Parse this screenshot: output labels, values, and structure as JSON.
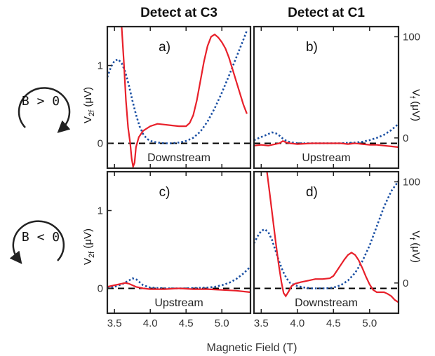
{
  "chart_data": {
    "type": "line",
    "column_titles": [
      "Detect at C3",
      "Detect at C1"
    ],
    "xlabel": "Magnetic Field  (T)",
    "xlim": [
      3.4,
      5.4
    ],
    "xticks": [
      "3.5",
      "4.0",
      "4.5",
      "5.0"
    ],
    "left_ylabel": {
      "main": "V",
      "sub": "2f",
      "unit": " (μV)"
    },
    "right_ylabel": {
      "main": "V",
      "sub": "f",
      "unit": " (μV)"
    },
    "left_ylim": [
      -0.32,
      1.5
    ],
    "left_yticks": [
      "0",
      "1"
    ],
    "right_ylim": [
      -29.9,
      110
    ],
    "right_yticks": [
      "0",
      "100"
    ],
    "row_labels": [
      {
        "text": "B > 0",
        "rotation": "clockwise"
      },
      {
        "text": "B < 0",
        "rotation": "counterclockwise"
      }
    ],
    "colors": {
      "red": "#e8202a",
      "blue": "#1a4fa3",
      "dash": "#000000"
    },
    "panels": [
      {
        "label": "a)",
        "annotation": "Downstream",
        "red": [
          [
            3.6,
            1.5
          ],
          [
            3.63,
            1.05
          ],
          [
            3.66,
            0.55
          ],
          [
            3.69,
            0.2
          ],
          [
            3.72,
            0.0
          ],
          [
            3.74,
            -0.2
          ],
          [
            3.76,
            -0.3
          ],
          [
            3.78,
            -0.25
          ],
          [
            3.8,
            -0.05
          ],
          [
            3.84,
            0.08
          ],
          [
            3.9,
            0.16
          ],
          [
            4.0,
            0.22
          ],
          [
            4.1,
            0.25
          ],
          [
            4.2,
            0.24
          ],
          [
            4.3,
            0.23
          ],
          [
            4.4,
            0.22
          ],
          [
            4.5,
            0.22
          ],
          [
            4.55,
            0.26
          ],
          [
            4.6,
            0.36
          ],
          [
            4.65,
            0.55
          ],
          [
            4.7,
            0.8
          ],
          [
            4.75,
            1.05
          ],
          [
            4.8,
            1.25
          ],
          [
            4.85,
            1.37
          ],
          [
            4.9,
            1.4
          ],
          [
            4.95,
            1.36
          ],
          [
            5.0,
            1.3
          ],
          [
            5.05,
            1.22
          ],
          [
            5.1,
            1.1
          ],
          [
            5.15,
            0.95
          ],
          [
            5.2,
            0.8
          ],
          [
            5.25,
            0.65
          ],
          [
            5.3,
            0.5
          ],
          [
            5.35,
            0.38
          ]
        ],
        "blue": [
          [
            3.4,
            0.85
          ],
          [
            3.45,
            0.98
          ],
          [
            3.5,
            1.06
          ],
          [
            3.55,
            1.08
          ],
          [
            3.6,
            1.03
          ],
          [
            3.65,
            0.92
          ],
          [
            3.7,
            0.75
          ],
          [
            3.75,
            0.55
          ],
          [
            3.8,
            0.37
          ],
          [
            3.85,
            0.22
          ],
          [
            3.9,
            0.12
          ],
          [
            3.95,
            0.06
          ],
          [
            4.0,
            0.03
          ],
          [
            4.1,
            0.01
          ],
          [
            4.2,
            0.0
          ],
          [
            4.3,
            0.0
          ],
          [
            4.4,
            0.01
          ],
          [
            4.5,
            0.03
          ],
          [
            4.6,
            0.07
          ],
          [
            4.7,
            0.15
          ],
          [
            4.8,
            0.28
          ],
          [
            4.9,
            0.45
          ],
          [
            5.0,
            0.65
          ],
          [
            5.1,
            0.87
          ],
          [
            5.2,
            1.1
          ],
          [
            5.3,
            1.33
          ],
          [
            5.35,
            1.45
          ]
        ]
      },
      {
        "label": "b)",
        "annotation": "Upstream",
        "red": [
          [
            3.4,
            -0.03
          ],
          [
            3.5,
            -0.02
          ],
          [
            3.6,
            -0.03
          ],
          [
            3.7,
            -0.01
          ],
          [
            3.75,
            0.0
          ],
          [
            3.8,
            0.03
          ],
          [
            3.85,
            0.01
          ],
          [
            3.9,
            0.0
          ],
          [
            4.0,
            -0.01
          ],
          [
            4.2,
            0.0
          ],
          [
            4.4,
            0.0
          ],
          [
            4.6,
            0.0
          ],
          [
            4.7,
            -0.01
          ],
          [
            4.8,
            0.0
          ],
          [
            4.9,
            -0.01
          ],
          [
            5.0,
            -0.02
          ],
          [
            5.1,
            -0.02
          ],
          [
            5.2,
            -0.03
          ],
          [
            5.3,
            -0.04
          ],
          [
            5.4,
            -0.05
          ]
        ],
        "blue": [
          [
            3.4,
            0.04
          ],
          [
            3.5,
            0.08
          ],
          [
            3.6,
            0.12
          ],
          [
            3.65,
            0.14
          ],
          [
            3.7,
            0.13
          ],
          [
            3.75,
            0.1
          ],
          [
            3.8,
            0.06
          ],
          [
            3.85,
            0.03
          ],
          [
            3.9,
            0.015
          ],
          [
            4.0,
            0.0
          ],
          [
            4.3,
            0.0
          ],
          [
            4.6,
            0.0
          ],
          [
            4.8,
            0.01
          ],
          [
            4.9,
            0.02
          ],
          [
            5.0,
            0.04
          ],
          [
            5.1,
            0.07
          ],
          [
            5.2,
            0.11
          ],
          [
            5.3,
            0.17
          ],
          [
            5.4,
            0.25
          ]
        ]
      },
      {
        "label": "c)",
        "annotation": "Upstream",
        "red": [
          [
            3.4,
            0.02
          ],
          [
            3.5,
            0.04
          ],
          [
            3.6,
            0.06
          ],
          [
            3.65,
            0.07
          ],
          [
            3.7,
            0.06
          ],
          [
            3.75,
            0.04
          ],
          [
            3.8,
            0.02
          ],
          [
            3.9,
            0.0
          ],
          [
            4.0,
            -0.01
          ],
          [
            4.2,
            -0.01
          ],
          [
            4.4,
            0.0
          ],
          [
            4.6,
            -0.01
          ],
          [
            4.8,
            -0.01
          ],
          [
            5.0,
            -0.02
          ],
          [
            5.2,
            -0.03
          ],
          [
            5.4,
            -0.05
          ]
        ],
        "blue": [
          [
            3.4,
            0.01
          ],
          [
            3.5,
            0.02
          ],
          [
            3.6,
            0.05
          ],
          [
            3.7,
            0.1
          ],
          [
            3.75,
            0.13
          ],
          [
            3.8,
            0.12
          ],
          [
            3.85,
            0.08
          ],
          [
            3.9,
            0.04
          ],
          [
            4.0,
            0.01
          ],
          [
            4.2,
            0.0
          ],
          [
            4.5,
            0.0
          ],
          [
            4.8,
            0.01
          ],
          [
            4.9,
            0.02
          ],
          [
            5.0,
            0.04
          ],
          [
            5.1,
            0.07
          ],
          [
            5.2,
            0.12
          ],
          [
            5.3,
            0.19
          ],
          [
            5.4,
            0.28
          ]
        ]
      },
      {
        "label": "d)",
        "annotation": "Downstream",
        "red": [
          [
            3.58,
            1.5
          ],
          [
            3.62,
            1.2
          ],
          [
            3.66,
            0.9
          ],
          [
            3.7,
            0.6
          ],
          [
            3.74,
            0.32
          ],
          [
            3.78,
            0.08
          ],
          [
            3.81,
            -0.06
          ],
          [
            3.84,
            -0.1
          ],
          [
            3.88,
            -0.04
          ],
          [
            3.92,
            0.03
          ],
          [
            3.97,
            0.06
          ],
          [
            4.05,
            0.08
          ],
          [
            4.15,
            0.1
          ],
          [
            4.25,
            0.12
          ],
          [
            4.35,
            0.12
          ],
          [
            4.45,
            0.13
          ],
          [
            4.5,
            0.16
          ],
          [
            4.55,
            0.23
          ],
          [
            4.6,
            0.3
          ],
          [
            4.65,
            0.37
          ],
          [
            4.7,
            0.43
          ],
          [
            4.75,
            0.46
          ],
          [
            4.8,
            0.43
          ],
          [
            4.85,
            0.36
          ],
          [
            4.9,
            0.26
          ],
          [
            4.95,
            0.15
          ],
          [
            5.0,
            0.05
          ],
          [
            5.05,
            -0.02
          ],
          [
            5.1,
            -0.05
          ],
          [
            5.15,
            -0.05
          ],
          [
            5.2,
            -0.05
          ],
          [
            5.25,
            -0.07
          ],
          [
            5.3,
            -0.1
          ],
          [
            5.35,
            -0.15
          ],
          [
            5.4,
            -0.18
          ]
        ],
        "blue": [
          [
            3.4,
            0.58
          ],
          [
            3.45,
            0.67
          ],
          [
            3.5,
            0.74
          ],
          [
            3.55,
            0.76
          ],
          [
            3.6,
            0.72
          ],
          [
            3.65,
            0.62
          ],
          [
            3.7,
            0.48
          ],
          [
            3.75,
            0.34
          ],
          [
            3.8,
            0.22
          ],
          [
            3.85,
            0.13
          ],
          [
            3.9,
            0.07
          ],
          [
            4.0,
            0.03
          ],
          [
            4.1,
            0.01
          ],
          [
            4.2,
            0.0
          ],
          [
            4.4,
            0.0
          ],
          [
            4.5,
            0.01
          ],
          [
            4.6,
            0.04
          ],
          [
            4.7,
            0.1
          ],
          [
            4.8,
            0.2
          ],
          [
            4.9,
            0.35
          ],
          [
            5.0,
            0.55
          ],
          [
            5.1,
            0.8
          ],
          [
            5.2,
            1.05
          ],
          [
            5.3,
            1.25
          ],
          [
            5.4,
            1.38
          ]
        ]
      }
    ]
  }
}
